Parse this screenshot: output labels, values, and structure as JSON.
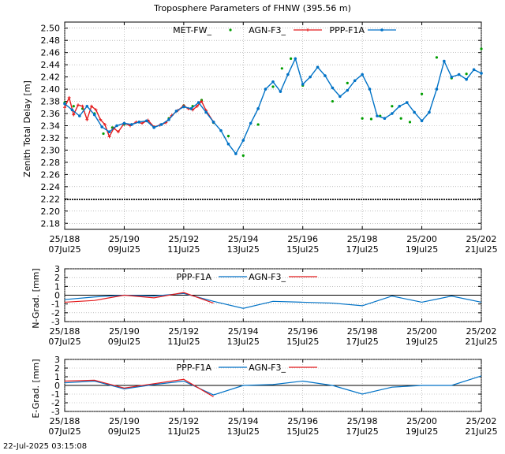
{
  "title": "Troposphere Parameters of FHNW (395.56 m)",
  "footer_timestamp": "22-Jul-2025 03:15:08",
  "colors": {
    "met": "#009e00",
    "ppp": "#0072c6",
    "agn": "#e41a1c",
    "grid": "#9a9a9a",
    "zero": "#000000"
  },
  "x_ticks": [
    {
      "doy": "25/188",
      "date": "07Jul25"
    },
    {
      "doy": "25/190",
      "date": "09Jul25"
    },
    {
      "doy": "25/192",
      "date": "11Jul25"
    },
    {
      "doy": "25/194",
      "date": "13Jul25"
    },
    {
      "doy": "25/196",
      "date": "15Jul25"
    },
    {
      "doy": "25/198",
      "date": "17Jul25"
    },
    {
      "doy": "25/200",
      "date": "19Jul25"
    },
    {
      "doy": "25/202",
      "date": "21Jul25"
    }
  ],
  "chart_data": [
    {
      "type": "line",
      "name": "ztd",
      "ylabel": "Zenith Total Delay [m]",
      "ylim": [
        2.17,
        2.51
      ],
      "yticks": [
        "2.18",
        "2.20",
        "2.22",
        "2.24",
        "2.26",
        "2.28",
        "2.30",
        "2.32",
        "2.34",
        "2.36",
        "2.38",
        "2.40",
        "2.42",
        "2.44",
        "2.46",
        "2.48",
        "2.50"
      ],
      "xlim": [
        188,
        202
      ],
      "grid": true,
      "legend_position": "top",
      "series": [
        {
          "name": "MET-FW_",
          "marker": "dot",
          "x": [
            188.0,
            188.3,
            188.6,
            189.0,
            189.3,
            189.6,
            190.0,
            190.5,
            191.0,
            191.5,
            192.0,
            192.3,
            192.6,
            193.0,
            193.5,
            194.0,
            194.5,
            195.0,
            195.3,
            195.6,
            196.0,
            196.5,
            197.0,
            197.5,
            198.0,
            198.3,
            198.6,
            199.0,
            199.3,
            199.6,
            200.0,
            200.5,
            201.0,
            201.5,
            202.0
          ],
          "y": [
            2.378,
            2.372,
            2.368,
            2.36,
            2.327,
            2.337,
            2.342,
            2.346,
            2.338,
            2.352,
            2.373,
            2.372,
            2.382,
            2.345,
            2.323,
            2.291,
            2.342,
            2.404,
            2.434,
            2.45,
            2.406,
            2.436,
            2.38,
            2.41,
            2.352,
            2.351,
            2.356,
            2.372,
            2.352,
            2.346,
            2.392,
            2.452,
            2.418,
            2.425,
            2.466
          ]
        },
        {
          "name": "AGN-F3_",
          "marker": "plus",
          "x": [
            188.0,
            188.15,
            188.3,
            188.45,
            188.6,
            188.75,
            188.9,
            189.05,
            189.2,
            189.35,
            189.5,
            189.65,
            189.8,
            190.0,
            190.2,
            190.4,
            190.6,
            190.8,
            191.0,
            191.2,
            191.4,
            191.6,
            191.8,
            192.0,
            192.15,
            192.3,
            192.45,
            192.6,
            192.75,
            193.0
          ],
          "y": [
            2.37,
            2.386,
            2.358,
            2.374,
            2.372,
            2.35,
            2.372,
            2.366,
            2.35,
            2.342,
            2.322,
            2.336,
            2.33,
            2.344,
            2.34,
            2.346,
            2.344,
            2.349,
            2.338,
            2.341,
            2.345,
            2.357,
            2.365,
            2.373,
            2.368,
            2.366,
            2.372,
            2.38,
            2.365,
            2.346
          ]
        },
        {
          "name": "PPP-F1A",
          "marker": "line",
          "x": [
            188.0,
            188.25,
            188.5,
            188.75,
            189.0,
            189.25,
            189.5,
            189.75,
            190.0,
            190.25,
            190.5,
            190.75,
            191.0,
            191.25,
            191.5,
            191.75,
            192.0,
            192.25,
            192.5,
            192.75,
            193.0,
            193.25,
            193.5,
            193.75,
            194.0,
            194.25,
            194.5,
            194.75,
            195.0,
            195.25,
            195.5,
            195.75,
            196.0,
            196.25,
            196.5,
            196.75,
            197.0,
            197.25,
            197.5,
            197.75,
            198.0,
            198.25,
            198.5,
            198.75,
            199.0,
            199.25,
            199.5,
            199.75,
            200.0,
            200.25,
            200.5,
            200.75,
            201.0,
            201.25,
            201.5,
            201.75,
            202.0
          ],
          "y": [
            2.376,
            2.366,
            2.356,
            2.372,
            2.358,
            2.338,
            2.33,
            2.34,
            2.344,
            2.342,
            2.346,
            2.348,
            2.337,
            2.342,
            2.35,
            2.364,
            2.371,
            2.368,
            2.378,
            2.362,
            2.346,
            2.332,
            2.31,
            2.294,
            2.316,
            2.344,
            2.368,
            2.4,
            2.412,
            2.396,
            2.424,
            2.45,
            2.408,
            2.42,
            2.436,
            2.422,
            2.402,
            2.388,
            2.398,
            2.414,
            2.424,
            2.4,
            2.356,
            2.352,
            2.36,
            2.372,
            2.378,
            2.362,
            2.348,
            2.362,
            2.4,
            2.446,
            2.42,
            2.424,
            2.416,
            2.432,
            2.426
          ]
        },
        {
          "name": "",
          "marker": "plus",
          "color_key": "zero",
          "x": [
            188,
            202
          ],
          "y": [
            2.219,
            2.219
          ]
        }
      ]
    },
    {
      "type": "line",
      "name": "n_grad",
      "ylabel": "N-Grad. [mm]",
      "ylim": [
        -3,
        3
      ],
      "yticks": [
        "-3",
        "-2",
        "-1",
        "0",
        "1",
        "2",
        "3"
      ],
      "xlim": [
        188,
        202
      ],
      "grid": true,
      "legend_position": "top",
      "series": [
        {
          "name": "PPP-F1A",
          "x": [
            188,
            189,
            190,
            191,
            192,
            193,
            194,
            195,
            196,
            197,
            198,
            199,
            200,
            201,
            202
          ],
          "y": [
            -0.5,
            -0.2,
            0.0,
            -0.1,
            0.2,
            -0.7,
            -1.5,
            -0.7,
            -0.8,
            -0.9,
            -1.2,
            -0.1,
            -0.8,
            -0.1,
            -0.8
          ]
        },
        {
          "name": "AGN-F3_",
          "x": [
            188,
            189,
            190,
            191,
            192,
            193
          ],
          "y": [
            -0.8,
            -0.6,
            0.0,
            -0.3,
            0.3,
            -0.9
          ]
        }
      ]
    },
    {
      "type": "line",
      "name": "e_grad",
      "ylabel": "E-Grad. [mm]",
      "ylim": [
        -3,
        3
      ],
      "yticks": [
        "-3",
        "-2",
        "-1",
        "0",
        "1",
        "2",
        "3"
      ],
      "xlim": [
        188,
        202
      ],
      "grid": true,
      "legend_position": "top",
      "series": [
        {
          "name": "PPP-F1A",
          "x": [
            188,
            189,
            190,
            191,
            192,
            193,
            194,
            195,
            196,
            197,
            198,
            199,
            200,
            201,
            202
          ],
          "y": [
            0.3,
            0.5,
            -0.4,
            0.1,
            0.5,
            -1.1,
            0.0,
            0.1,
            0.5,
            0.0,
            -1.0,
            -0.2,
            0.0,
            0.0,
            1.1
          ]
        },
        {
          "name": "AGN-F3_",
          "x": [
            188,
            189,
            190,
            191,
            192,
            193
          ],
          "y": [
            0.5,
            0.6,
            -0.3,
            0.2,
            0.7,
            -1.3
          ]
        }
      ]
    }
  ]
}
